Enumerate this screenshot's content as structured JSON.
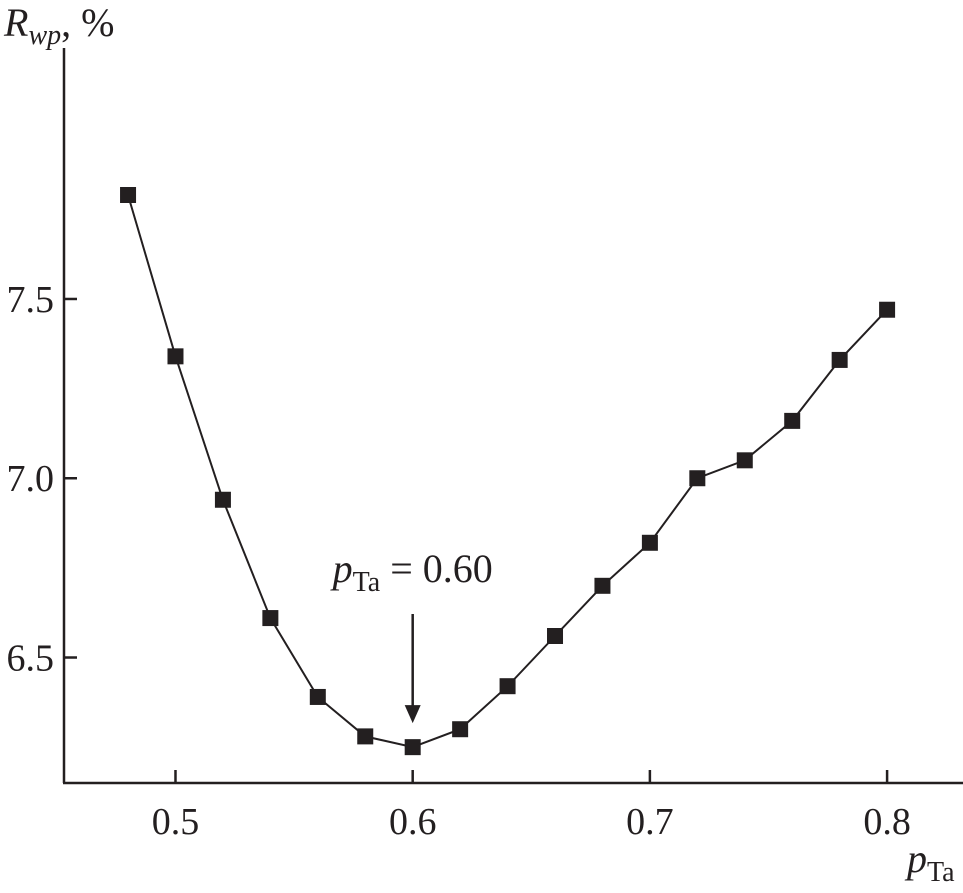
{
  "chart_data": {
    "type": "line",
    "marker": "square",
    "colors": {
      "line": "#231f20",
      "marker": "#231f20",
      "axis": "#231f20"
    },
    "x": [
      0.48,
      0.5,
      0.52,
      0.54,
      0.56,
      0.58,
      0.6,
      0.62,
      0.64,
      0.66,
      0.68,
      0.7,
      0.72,
      0.74,
      0.76,
      0.78,
      0.8
    ],
    "series": [
      {
        "values": [
          7.79,
          7.34,
          6.94,
          6.61,
          6.39,
          6.28,
          6.25,
          6.3,
          6.42,
          6.56,
          6.7,
          6.82,
          7.0,
          7.05,
          7.16,
          7.33,
          7.47
        ]
      }
    ],
    "xlabel": {
      "base": "p",
      "subscript": "Ta"
    },
    "ylabel": {
      "base": "R",
      "subscript": "wp",
      "suffix": ", %"
    },
    "xlim": [
      0.453,
      0.832
    ],
    "ylim": [
      6.15,
      8.2
    ],
    "xticks": [
      0.5,
      0.6,
      0.7,
      0.8
    ],
    "xtick_labels": [
      "0.5",
      "0.6",
      "0.7",
      "0.8"
    ],
    "yticks": [
      6.5,
      7.0,
      7.5
    ],
    "ytick_labels": [
      "6.5",
      "7.0",
      "7.5"
    ],
    "grid": false,
    "legend": "none",
    "annotation": {
      "x": 0.6,
      "y": 6.25,
      "base": "p",
      "subscript": "Ta",
      "rest": " = 0.60",
      "arrow": true
    }
  }
}
